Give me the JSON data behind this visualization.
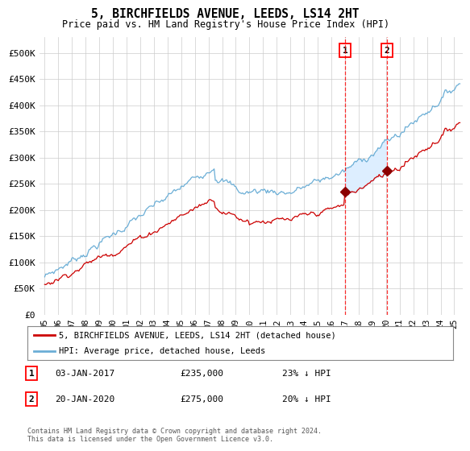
{
  "title": "5, BIRCHFIELDS AVENUE, LEEDS, LS14 2HT",
  "subtitle": "Price paid vs. HM Land Registry's House Price Index (HPI)",
  "ylim": [
    0,
    530000
  ],
  "yticks": [
    0,
    50000,
    100000,
    150000,
    200000,
    250000,
    300000,
    350000,
    400000,
    450000,
    500000
  ],
  "ytick_labels": [
    "£0",
    "£50K",
    "£100K",
    "£150K",
    "£200K",
    "£250K",
    "£300K",
    "£350K",
    "£400K",
    "£450K",
    "£500K"
  ],
  "hpi_color": "#6baed6",
  "price_color": "#cc0000",
  "sale1_year": 2017.0,
  "sale2_year": 2020.083,
  "sale1_price": 235000,
  "sale2_price": 275000,
  "legend_property": "5, BIRCHFIELDS AVENUE, LEEDS, LS14 2HT (detached house)",
  "legend_hpi": "HPI: Average price, detached house, Leeds",
  "footnote": "Contains HM Land Registry data © Crown copyright and database right 2024.\nThis data is licensed under the Open Government Licence v3.0.",
  "background_color": "#ffffff",
  "grid_color": "#cccccc",
  "shade_color": "#ddeeff"
}
